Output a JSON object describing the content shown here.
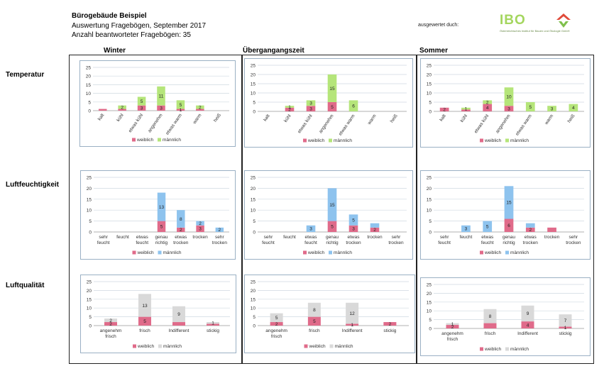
{
  "header": {
    "title": "Bürogebäude Beispiel",
    "line1": "Auswertung Fragebögen, September 2017",
    "line2": "Anzahl beantworteter Fragebögen: 35",
    "evaluated_by": "ausgewertet duch:",
    "logo_text": "IBO",
    "logo_subtitle": "Österreichisches Institut für Bauen und Ökologie GmbH"
  },
  "seasons": [
    "Winter",
    "Übergangangszeit",
    "Sommer"
  ],
  "row_labels": [
    "Temperatur",
    "Luftfeuchtigkeit",
    "Luftqualität"
  ],
  "colors": {
    "weiblich": "#e06b8a",
    "temp_maennlich": "#b5e57a",
    "humid_maennlich": "#8ec3ee",
    "air_maennlich": "#d9d9d9",
    "grid": "#cfd8e0",
    "box_border": "#9ab0c4"
  },
  "chart_data": [
    {
      "type": "bar",
      "stacked": true,
      "row": "Temperatur",
      "season": "Winter",
      "categories": [
        "kalt",
        "kühl",
        "etwas kühl",
        "angenehm",
        "etwas warm",
        "warm",
        "heiß"
      ],
      "series": [
        {
          "name": "weiblich",
          "values": [
            1,
            1,
            3,
            3,
            1,
            1,
            0
          ]
        },
        {
          "name": "männlich",
          "values": [
            0,
            2,
            5,
            11,
            5,
            2,
            0
          ]
        }
      ],
      "ylim": [
        0,
        25
      ],
      "yticks": [
        0,
        5,
        10,
        15,
        20,
        25
      ],
      "labels": [
        [
          null,
          null
        ],
        [
          null,
          2
        ],
        [
          3,
          5
        ],
        [
          3,
          11
        ],
        [
          1,
          5
        ],
        [
          null,
          2
        ],
        [
          null,
          null
        ]
      ],
      "legend": "bottom",
      "rotate": true
    },
    {
      "type": "bar",
      "stacked": true,
      "row": "Temperatur",
      "season": "Übergangangszeit",
      "categories": [
        "kalt",
        "kühl",
        "etwas kühl",
        "angenehm",
        "etwas warm",
        "warm",
        "heiß"
      ],
      "series": [
        {
          "name": "weiblich",
          "values": [
            0,
            2,
            3,
            5,
            0,
            0,
            0
          ]
        },
        {
          "name": "männlich",
          "values": [
            0,
            1,
            3,
            15,
            6,
            0,
            0
          ]
        }
      ],
      "ylim": [
        0,
        25
      ],
      "yticks": [
        0,
        5,
        10,
        15,
        20,
        25
      ],
      "labels": [
        [
          null,
          null
        ],
        [
          2,
          1
        ],
        [
          3,
          3
        ],
        [
          5,
          15
        ],
        [
          null,
          6
        ],
        [
          null,
          null
        ],
        [
          null,
          null
        ]
      ],
      "legend": "bottom",
      "rotate": true
    },
    {
      "type": "bar",
      "stacked": true,
      "row": "Temperatur",
      "season": "Sommer",
      "categories": [
        "kalt",
        "kühl",
        "etwas kühl",
        "angenehm",
        "etwas warm",
        "warm",
        "heiß"
      ],
      "series": [
        {
          "name": "weiblich",
          "values": [
            2,
            1,
            4,
            3,
            0,
            0,
            0
          ]
        },
        {
          "name": "männlich",
          "values": [
            0,
            1,
            2,
            10,
            5,
            3,
            4
          ]
        }
      ],
      "ylim": [
        0,
        25
      ],
      "yticks": [
        0,
        5,
        10,
        15,
        20,
        25
      ],
      "labels": [
        [
          2,
          null
        ],
        [
          null,
          1
        ],
        [
          4,
          2
        ],
        [
          3,
          10
        ],
        [
          null,
          5
        ],
        [
          null,
          3
        ],
        [
          null,
          4
        ]
      ],
      "legend": "bottom",
      "rotate": true
    },
    {
      "type": "bar",
      "stacked": true,
      "row": "Luftfeuchtigkeit",
      "season": "Winter",
      "categories": [
        "sehr feucht",
        "feucht",
        "etwas feucht",
        "genau richtig",
        "etwas trocken",
        "trocken",
        "sehr trocken"
      ],
      "series": [
        {
          "name": "weiblich",
          "values": [
            0,
            0,
            0,
            5,
            2,
            3,
            0
          ]
        },
        {
          "name": "männlich",
          "values": [
            0,
            0,
            0,
            13,
            8,
            2,
            2
          ]
        }
      ],
      "ylim": [
        0,
        25
      ],
      "yticks": [
        0,
        5,
        10,
        15,
        20,
        25
      ],
      "labels": [
        [
          null,
          null
        ],
        [
          null,
          null
        ],
        [
          null,
          null
        ],
        [
          5,
          13
        ],
        [
          2,
          8
        ],
        [
          3,
          2
        ],
        [
          null,
          2
        ]
      ],
      "legend": "bottom",
      "rotate": false
    },
    {
      "type": "bar",
      "stacked": true,
      "row": "Luftfeuchtigkeit",
      "season": "Übergangangszeit",
      "categories": [
        "sehr feucht",
        "feucht",
        "etwas feucht",
        "genau richtig",
        "etwas trocken",
        "trocken",
        "sehr trocken"
      ],
      "series": [
        {
          "name": "weiblich",
          "values": [
            0,
            0,
            0,
            5,
            3,
            2,
            0
          ]
        },
        {
          "name": "männlich",
          "values": [
            0,
            0,
            3,
            15,
            5,
            2,
            0
          ]
        }
      ],
      "ylim": [
        0,
        25
      ],
      "yticks": [
        0,
        5,
        10,
        15,
        20,
        25
      ],
      "labels": [
        [
          null,
          null
        ],
        [
          null,
          null
        ],
        [
          null,
          3
        ],
        [
          5,
          15
        ],
        [
          3,
          5
        ],
        [
          2,
          null
        ],
        [
          null,
          null
        ]
      ],
      "legend": "bottom",
      "rotate": false
    },
    {
      "type": "bar",
      "stacked": true,
      "row": "Luftfeuchtigkeit",
      "season": "Sommer",
      "categories": [
        "sehr feucht",
        "feucht",
        "etwas feucht",
        "genau richtig",
        "etwas trocken",
        "trocken",
        "sehr trocken"
      ],
      "series": [
        {
          "name": "weiblich",
          "values": [
            0,
            0,
            0,
            6,
            2,
            2,
            0
          ]
        },
        {
          "name": "männlich",
          "values": [
            0,
            3,
            5,
            15,
            2,
            0,
            0
          ]
        }
      ],
      "ylim": [
        0,
        25
      ],
      "yticks": [
        0,
        5,
        10,
        15,
        20,
        25
      ],
      "labels": [
        [
          null,
          null
        ],
        [
          null,
          3
        ],
        [
          null,
          5
        ],
        [
          6,
          15
        ],
        [
          2,
          null
        ],
        [
          null,
          null
        ],
        [
          null,
          null
        ]
      ],
      "legend": "bottom",
      "rotate": false
    },
    {
      "type": "bar",
      "stacked": true,
      "row": "Luftqualität",
      "season": "Winter",
      "categories": [
        "angenehm frisch",
        "frisch",
        "Indifferent",
        "stickig"
      ],
      "series": [
        {
          "name": "weiblich",
          "values": [
            2,
            5,
            2,
            1
          ]
        },
        {
          "name": "männlich",
          "values": [
            2,
            13,
            9,
            1
          ]
        }
      ],
      "ylim": [
        0,
        25
      ],
      "yticks": [
        0,
        5,
        10,
        15,
        20,
        25
      ],
      "labels": [
        [
          2,
          2
        ],
        [
          5,
          13
        ],
        [
          null,
          9
        ],
        [
          null,
          1
        ]
      ],
      "legend": "bottom",
      "rotate": false
    },
    {
      "type": "bar",
      "stacked": true,
      "row": "Luftqualität",
      "season": "Übergangangszeit",
      "categories": [
        "angenehm frisch",
        "frisch",
        "Indifferent",
        "stickig"
      ],
      "series": [
        {
          "name": "weiblich",
          "values": [
            2,
            5,
            1,
            2
          ]
        },
        {
          "name": "männlich",
          "values": [
            5,
            8,
            12,
            0
          ]
        }
      ],
      "ylim": [
        0,
        25
      ],
      "yticks": [
        0,
        5,
        10,
        15,
        20,
        25
      ],
      "labels": [
        [
          2,
          5
        ],
        [
          5,
          8
        ],
        [
          1,
          12
        ],
        [
          2,
          null
        ]
      ],
      "legend": "bottom",
      "rotate": false
    },
    {
      "type": "bar",
      "stacked": true,
      "row": "Luftqualität",
      "season": "Sommer",
      "categories": [
        "angenehm frisch",
        "frisch",
        "Indifferent",
        "stickig"
      ],
      "series": [
        {
          "name": "weiblich",
          "values": [
            2,
            3,
            4,
            1
          ]
        },
        {
          "name": "männlich",
          "values": [
            1,
            8,
            9,
            7
          ]
        }
      ],
      "ylim": [
        0,
        25
      ],
      "yticks": [
        0,
        5,
        10,
        15,
        20,
        25
      ],
      "labels": [
        [
          2,
          1
        ],
        [
          null,
          8
        ],
        [
          4,
          9
        ],
        [
          1,
          7
        ]
      ],
      "legend": "bottom",
      "rotate": false
    }
  ]
}
